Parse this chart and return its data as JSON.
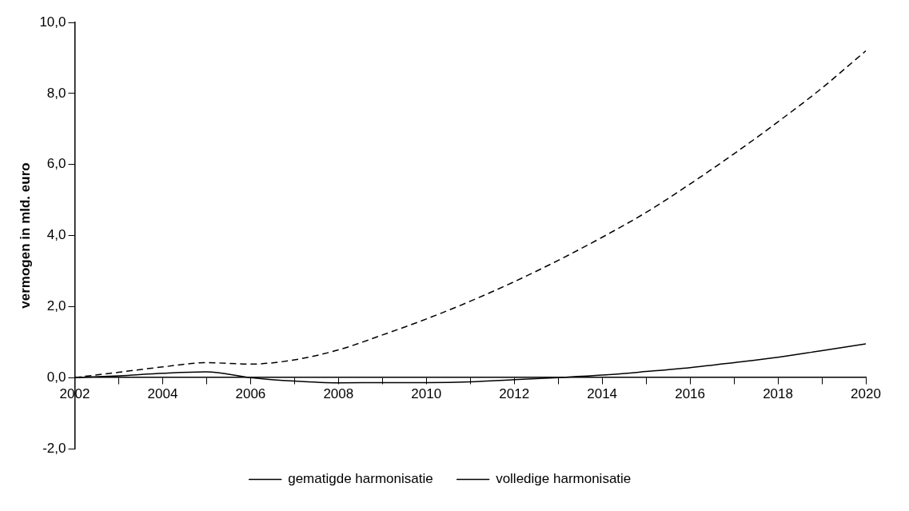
{
  "chart_data": {
    "type": "line",
    "ylabel": "vermogen in mld. euro",
    "x": [
      2002,
      2003,
      2004,
      2005,
      2006,
      2007,
      2008,
      2009,
      2010,
      2011,
      2012,
      2013,
      2014,
      2015,
      2016,
      2017,
      2018,
      2019,
      2020
    ],
    "series": [
      {
        "name": "gematigde harmonisatie",
        "color": "#000000",
        "line_style": "solid",
        "values": [
          0,
          0.05,
          0.12,
          0.16,
          0,
          -0.1,
          -0.15,
          -0.14,
          -0.14,
          -0.12,
          -0.06,
          0,
          0.07,
          0.17,
          0.28,
          0.42,
          0.57,
          0.76,
          0.95
        ]
      },
      {
        "name": "volledige harmonisatie",
        "color": "#000000",
        "line_style": "dashed",
        "values": [
          0,
          0.15,
          0.3,
          0.42,
          0.38,
          0.5,
          0.78,
          1.2,
          1.65,
          2.15,
          2.7,
          3.3,
          3.95,
          4.65,
          5.45,
          6.3,
          7.2,
          8.15,
          9.2
        ]
      }
    ],
    "xlim": [
      2002,
      2020
    ],
    "xticks": [
      2002,
      {
        "value": 2003,
        "label": null
      },
      2004,
      {
        "value": 2005,
        "label": null
      },
      2006,
      {
        "value": 2007,
        "label": null
      },
      2008,
      {
        "value": 2009,
        "label": null
      },
      2010,
      {
        "value": 2011,
        "label": null
      },
      2012,
      {
        "value": 2013,
        "label": null
      },
      2014,
      {
        "value": 2015,
        "label": null
      },
      2016,
      {
        "value": 2017,
        "label": null
      },
      2018,
      {
        "value": 2019,
        "label": null
      },
      2020
    ],
    "ylim": [
      -2,
      10
    ],
    "yticks": [
      {
        "value": -2,
        "label": "-2,0"
      },
      {
        "value": 0,
        "label": "0,0"
      },
      {
        "value": 2,
        "label": "2,0"
      },
      {
        "value": 4,
        "label": "4,0"
      },
      {
        "value": 6,
        "label": "6,0"
      },
      {
        "value": 8,
        "label": "8,0"
      },
      {
        "value": 10,
        "label": "10,0"
      }
    ],
    "grid": false,
    "legend": "bottom",
    "marker": "none"
  }
}
